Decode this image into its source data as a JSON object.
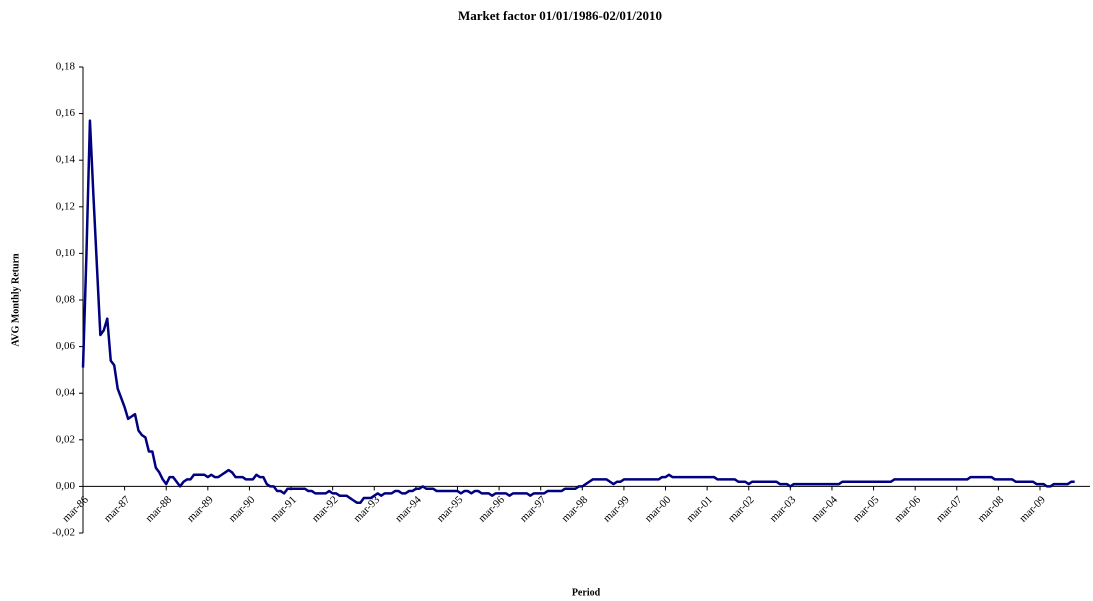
{
  "chart_data": {
    "type": "line",
    "title": "Market factor 01/01/1986-02/01/2010",
    "x_label": "Period",
    "y_label": "AVG Monthly Return",
    "color": "#000080",
    "categories": [
      "mar-86",
      null,
      null,
      null,
      null,
      null,
      null,
      null,
      null,
      null,
      null,
      null,
      "mar-87",
      null,
      null,
      null,
      null,
      null,
      null,
      null,
      null,
      null,
      null,
      null,
      "mar-88",
      null,
      null,
      null,
      null,
      null,
      null,
      null,
      null,
      null,
      null,
      null,
      "mar-89",
      null,
      null,
      null,
      null,
      null,
      null,
      null,
      null,
      null,
      null,
      null,
      "mar-90",
      null,
      null,
      null,
      null,
      null,
      null,
      null,
      null,
      null,
      null,
      null,
      "mar-91",
      null,
      null,
      null,
      null,
      null,
      null,
      null,
      null,
      null,
      null,
      null,
      "mar-92",
      null,
      null,
      null,
      null,
      null,
      null,
      null,
      null,
      null,
      null,
      null,
      "mar-93",
      null,
      null,
      null,
      null,
      null,
      null,
      null,
      null,
      null,
      null,
      null,
      "mar-94",
      null,
      null,
      null,
      null,
      null,
      null,
      null,
      null,
      null,
      null,
      null,
      "mar-95",
      null,
      null,
      null,
      null,
      null,
      null,
      null,
      null,
      null,
      null,
      null,
      "mar-96",
      null,
      null,
      null,
      null,
      null,
      null,
      null,
      null,
      null,
      null,
      null,
      "mar-97",
      null,
      null,
      null,
      null,
      null,
      null,
      null,
      null,
      null,
      null,
      null,
      "mar-98",
      null,
      null,
      null,
      null,
      null,
      null,
      null,
      null,
      null,
      null,
      null,
      "mar-99",
      null,
      null,
      null,
      null,
      null,
      null,
      null,
      null,
      null,
      null,
      null,
      "mar-00",
      null,
      null,
      null,
      null,
      null,
      null,
      null,
      null,
      null,
      null,
      null,
      "mar-01",
      null,
      null,
      null,
      null,
      null,
      null,
      null,
      null,
      null,
      null,
      null,
      "mar-02",
      null,
      null,
      null,
      null,
      null,
      null,
      null,
      null,
      null,
      null,
      null,
      "mar-03",
      null,
      null,
      null,
      null,
      null,
      null,
      null,
      null,
      null,
      null,
      null,
      "mar-04",
      null,
      null,
      null,
      null,
      null,
      null,
      null,
      null,
      null,
      null,
      null,
      "mar-05",
      null,
      null,
      null,
      null,
      null,
      null,
      null,
      null,
      null,
      null,
      null,
      "mar-06",
      null,
      null,
      null,
      null,
      null,
      null,
      null,
      null,
      null,
      null,
      null,
      "mar-07",
      null,
      null,
      null,
      null,
      null,
      null,
      null,
      null,
      null,
      null,
      null,
      "mar-08",
      null,
      null,
      null,
      null,
      null,
      null,
      null,
      null,
      null,
      null,
      null,
      "mar-09",
      null,
      null,
      null,
      null,
      null,
      null,
      null,
      null,
      null,
      null
    ],
    "values": [
      0.051,
      0.1,
      0.157,
      0.125,
      0.095,
      0.065,
      0.067,
      0.072,
      0.054,
      0.052,
      0.042,
      0.038,
      0.034,
      0.029,
      0.03,
      0.031,
      0.024,
      0.022,
      0.021,
      0.015,
      0.015,
      0.008,
      0.006,
      0.003,
      0.001,
      0.004,
      0.004,
      0.002,
      0.0,
      0.002,
      0.003,
      0.003,
      0.005,
      0.005,
      0.005,
      0.005,
      0.004,
      0.005,
      0.004,
      0.004,
      0.005,
      0.006,
      0.007,
      0.006,
      0.004,
      0.004,
      0.004,
      0.003,
      0.003,
      0.003,
      0.005,
      0.004,
      0.004,
      0.001,
      0.0,
      0.0,
      -0.002,
      -0.002,
      -0.003,
      -0.001,
      -0.001,
      -0.001,
      -0.001,
      -0.001,
      -0.001,
      -0.002,
      -0.002,
      -0.003,
      -0.003,
      -0.003,
      -0.003,
      -0.002,
      -0.003,
      -0.003,
      -0.004,
      -0.004,
      -0.004,
      -0.005,
      -0.006,
      -0.007,
      -0.007,
      -0.005,
      -0.005,
      -0.005,
      -0.004,
      -0.003,
      -0.004,
      -0.003,
      -0.003,
      -0.003,
      -0.002,
      -0.002,
      -0.003,
      -0.003,
      -0.002,
      -0.002,
      -0.001,
      -0.001,
      0.0,
      -0.001,
      -0.001,
      -0.001,
      -0.002,
      -0.002,
      -0.002,
      -0.002,
      -0.002,
      -0.002,
      -0.002,
      -0.003,
      -0.002,
      -0.002,
      -0.003,
      -0.002,
      -0.002,
      -0.003,
      -0.003,
      -0.003,
      -0.004,
      -0.003,
      -0.003,
      -0.003,
      -0.003,
      -0.004,
      -0.003,
      -0.003,
      -0.003,
      -0.003,
      -0.003,
      -0.004,
      -0.003,
      -0.003,
      -0.003,
      -0.003,
      -0.002,
      -0.002,
      -0.002,
      -0.002,
      -0.002,
      -0.001,
      -0.001,
      -0.001,
      -0.001,
      0.0,
      0.0,
      0.001,
      0.002,
      0.003,
      0.003,
      0.003,
      0.003,
      0.003,
      0.002,
      0.001,
      0.002,
      0.002,
      0.003,
      0.003,
      0.003,
      0.003,
      0.003,
      0.003,
      0.003,
      0.003,
      0.003,
      0.003,
      0.003,
      0.004,
      0.004,
      0.005,
      0.004,
      0.004,
      0.004,
      0.004,
      0.004,
      0.004,
      0.004,
      0.004,
      0.004,
      0.004,
      0.004,
      0.004,
      0.004,
      0.003,
      0.003,
      0.003,
      0.003,
      0.003,
      0.003,
      0.002,
      0.002,
      0.002,
      0.001,
      0.002,
      0.002,
      0.002,
      0.002,
      0.002,
      0.002,
      0.002,
      0.002,
      0.001,
      0.001,
      0.001,
      0.0,
      0.001,
      0.001,
      0.001,
      0.001,
      0.001,
      0.001,
      0.001,
      0.001,
      0.001,
      0.001,
      0.001,
      0.001,
      0.001,
      0.001,
      0.002,
      0.002,
      0.002,
      0.002,
      0.002,
      0.002,
      0.002,
      0.002,
      0.002,
      0.002,
      0.002,
      0.002,
      0.002,
      0.002,
      0.002,
      0.003,
      0.003,
      0.003,
      0.003,
      0.003,
      0.003,
      0.003,
      0.003,
      0.003,
      0.003,
      0.003,
      0.003,
      0.003,
      0.003,
      0.003,
      0.003,
      0.003,
      0.003,
      0.003,
      0.003,
      0.003,
      0.003,
      0.004,
      0.004,
      0.004,
      0.004,
      0.004,
      0.004,
      0.004,
      0.003,
      0.003,
      0.003,
      0.003,
      0.003,
      0.003,
      0.002,
      0.002,
      0.002,
      0.002,
      0.002,
      0.002,
      0.001,
      0.001,
      0.001,
      0.0,
      0.0,
      0.001,
      0.001,
      0.001,
      0.001,
      0.001,
      0.002,
      0.002
    ],
    "ylim": [
      -0.02,
      0.18
    ],
    "yticks": [
      {
        "value": -0.02,
        "label": "-0,02"
      },
      {
        "value": 0,
        "label": "0,00"
      },
      {
        "value": 0.02,
        "label": "0,02"
      },
      {
        "value": 0.04,
        "label": "0,04"
      },
      {
        "value": 0.06,
        "label": "0,06"
      },
      {
        "value": 0.08,
        "label": "0,08"
      },
      {
        "value": 0.1,
        "label": "0,10"
      },
      {
        "value": 0.12,
        "label": "0,12"
      },
      {
        "value": 0.14,
        "label": "0,14"
      },
      {
        "value": 0.16,
        "label": "0,16"
      },
      {
        "value": 0.18,
        "label": "0,18"
      }
    ],
    "grid": false
  }
}
